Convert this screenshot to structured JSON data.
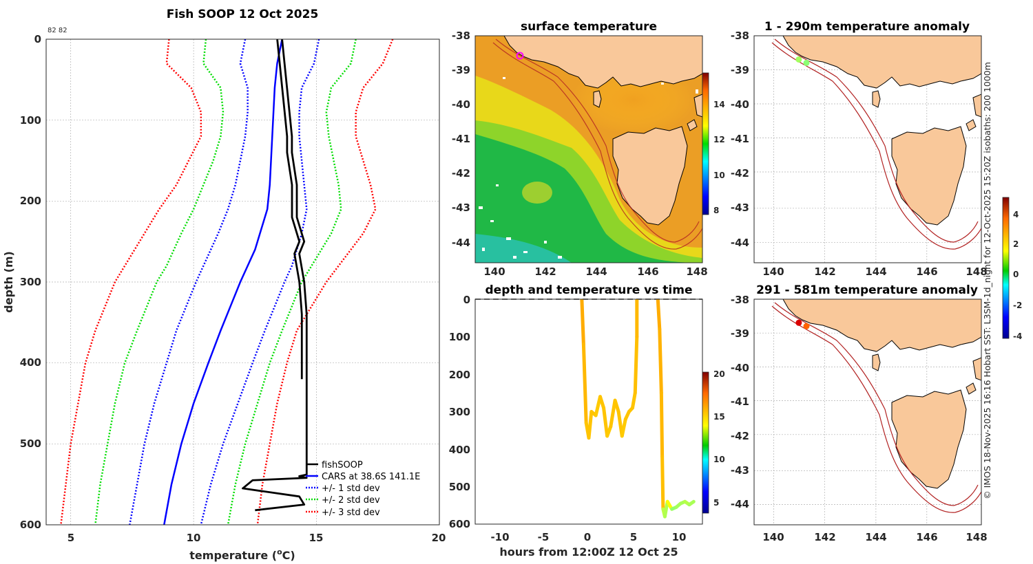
{
  "chart_data": [
    {
      "type": "line",
      "title": "Fish SOOP 12 Oct 2025",
      "subtitle": "82 82",
      "xlabel": "temperature (°C)",
      "xlabel_main": "temperature (",
      "xlabel_unit": "C)",
      "xlabel_sup": "o",
      "ylabel": "depth (m)",
      "xlim": [
        4,
        20
      ],
      "ylim": [
        0,
        600
      ],
      "xticks": [
        "5",
        "10",
        "15",
        "20"
      ],
      "yticks": [
        "0",
        "100",
        "200",
        "300",
        "400",
        "500",
        "600"
      ],
      "legend": [
        "fishSOOP",
        "CARS at 38.6S 141.1E",
        "+/- 1 std dev",
        "+/- 2 std dev",
        "+/- 3 std dev"
      ],
      "depths": [
        0,
        30,
        60,
        90,
        120,
        150,
        180,
        210,
        240,
        260,
        280,
        300,
        330,
        360,
        400,
        450,
        500,
        550,
        600
      ],
      "series": [
        {
          "name": "CARS mean",
          "color": "#0000ff",
          "style": "solid",
          "values": [
            13.6,
            13.4,
            13.3,
            13.25,
            13.2,
            13.15,
            13.1,
            13.0,
            12.7,
            12.5,
            12.2,
            11.9,
            11.5,
            11.1,
            10.6,
            10.0,
            9.5,
            9.1,
            8.8
          ]
        },
        {
          "name": "-1 std",
          "color": "#0000ff",
          "style": "dotted",
          "values": [
            12.1,
            11.9,
            12.2,
            12.2,
            12.1,
            11.9,
            11.7,
            11.4,
            11.0,
            10.7,
            10.4,
            10.1,
            9.7,
            9.3,
            8.9,
            8.4,
            8.0,
            7.7,
            7.4
          ]
        },
        {
          "name": "+1 std",
          "color": "#0000ff",
          "style": "dotted",
          "values": [
            15.1,
            14.9,
            14.4,
            14.3,
            14.3,
            14.4,
            14.5,
            14.6,
            14.4,
            14.2,
            14.0,
            13.7,
            13.3,
            12.9,
            12.4,
            11.8,
            11.2,
            10.7,
            10.3
          ]
        },
        {
          "name": "-2 std",
          "color": "#00dd00",
          "style": "dotted",
          "values": [
            10.5,
            10.4,
            11.1,
            11.2,
            11.1,
            10.8,
            10.4,
            10.0,
            9.5,
            9.2,
            8.9,
            8.5,
            8.1,
            7.7,
            7.2,
            6.8,
            6.5,
            6.2,
            6.0
          ]
        },
        {
          "name": "+2 std",
          "color": "#00dd00",
          "style": "dotted",
          "values": [
            16.6,
            16.4,
            15.6,
            15.4,
            15.5,
            15.7,
            15.9,
            16.0,
            15.6,
            15.2,
            14.8,
            14.4,
            14.0,
            13.6,
            13.1,
            12.6,
            12.1,
            11.7,
            11.4
          ]
        },
        {
          "name": "-3 std",
          "color": "#ff0000",
          "style": "dotted",
          "values": [
            9.0,
            8.9,
            9.9,
            10.3,
            10.3,
            9.8,
            9.3,
            8.6,
            8.0,
            7.6,
            7.2,
            6.8,
            6.4,
            6.0,
            5.6,
            5.3,
            5.0,
            4.8,
            4.6
          ]
        },
        {
          "name": "+3 std",
          "color": "#ff0000",
          "style": "dotted",
          "values": [
            18.1,
            17.7,
            16.9,
            16.6,
            16.6,
            16.9,
            17.2,
            17.4,
            16.9,
            16.4,
            15.9,
            15.4,
            14.8,
            14.2,
            13.8,
            13.4,
            13.1,
            12.8,
            12.6
          ]
        }
      ],
      "profile": {
        "name": "fishSOOP",
        "color": "#000000",
        "temps": [
          13.6,
          13.7,
          13.8,
          13.9,
          14.0,
          14.0,
          14.2,
          14.2,
          14.5,
          14.3,
          14.5,
          14.6,
          14.6,
          14.6,
          14.6,
          14.6,
          14.6,
          14.3,
          14.6,
          12.4,
          12.0,
          14.3,
          14.5,
          12.5
        ],
        "depths": [
          0,
          30,
          60,
          90,
          120,
          140,
          180,
          220,
          250,
          265,
          300,
          340,
          370,
          420,
          480,
          520,
          538,
          540,
          542,
          545,
          555,
          565,
          575,
          582
        ]
      }
    },
    {
      "type": "heatmap",
      "title": "surface temperature",
      "xticks": [
        "140",
        "142",
        "144",
        "146",
        "148"
      ],
      "yticks": [
        "-38",
        "-39",
        "-40",
        "-41",
        "-42",
        "-43",
        "-44"
      ],
      "xlim": [
        139.3,
        148.2
      ],
      "ylim": [
        -44.6,
        -37.9
      ],
      "colorbar": {
        "ticks": [
          "8",
          "10",
          "12",
          "14"
        ],
        "range": [
          7.5,
          16.5
        ]
      },
      "marker": {
        "lon": 141.1,
        "lat": -38.6
      }
    },
    {
      "type": "scatter",
      "title": "depth and temperature vs time",
      "xlabel": "hours from 12:00Z 12 Oct 25",
      "xticks": [
        "-10",
        "-5",
        "0",
        "5",
        "10"
      ],
      "yticks": [
        "0",
        "100",
        "200",
        "300",
        "400",
        "500",
        "600"
      ],
      "xlim": [
        -13,
        13
      ],
      "ylim": [
        0,
        600
      ],
      "colorbar": {
        "ticks": [
          "5",
          "10",
          "15",
          "20"
        ],
        "range": [
          3,
          20
        ]
      },
      "track": {
        "hours": [
          -0.8,
          -0.6,
          -0.3,
          0.0,
          0.3,
          0.8,
          1.3,
          1.7,
          2.1,
          2.5,
          3.0,
          3.4,
          3.8,
          4.2,
          4.6,
          5.0,
          5.3,
          5.5,
          5.5
        ],
        "depths": [
          0,
          120,
          330,
          370,
          300,
          310,
          260,
          290,
          365,
          340,
          270,
          300,
          365,
          320,
          300,
          290,
          250,
          100,
          0
        ],
        "temps": [
          15,
          14.8,
          14.6,
          14.6,
          14.6,
          14.5,
          14.6,
          14.6,
          14.5,
          14.6,
          14.6,
          14.6,
          14.5,
          14.6,
          14.6,
          14.6,
          14.7,
          14.8,
          15
        ]
      },
      "track2": {
        "hours": [
          7.9,
          8.1,
          8.3,
          8.4,
          8.5,
          8.7,
          9.0,
          9.5,
          10.0,
          10.5,
          11.0,
          11.5,
          12.0
        ],
        "depths": [
          0,
          80,
          250,
          420,
          560,
          580,
          540,
          560,
          555,
          545,
          540,
          548,
          540
        ],
        "temps": [
          15,
          14.9,
          14.8,
          14.7,
          12.5,
          12.3,
          13.5,
          11.8,
          12.1,
          12.2,
          12.4,
          12.2,
          12.3
        ]
      }
    },
    {
      "type": "scatter",
      "title": "1 - 290m temperature anomaly",
      "xticks": [
        "140",
        "142",
        "144",
        "146",
        "148"
      ],
      "yticks": [
        "-38",
        "-39",
        "-40",
        "-41",
        "-42",
        "-43",
        "-44"
      ],
      "points": [
        {
          "lon": 141.05,
          "lat": -38.6,
          "anomaly": 0.8
        },
        {
          "lon": 141.35,
          "lat": -38.7,
          "anomaly": 0.6
        }
      ]
    },
    {
      "type": "scatter",
      "title": "291 - 581m temperature anomaly",
      "xticks": [
        "140",
        "142",
        "144",
        "146",
        "148"
      ],
      "yticks": [
        "-38",
        "-39",
        "-40",
        "-41",
        "-42",
        "-43",
        "-44"
      ],
      "points": [
        {
          "lon": 141.05,
          "lat": -38.6,
          "anomaly": 4.2
        },
        {
          "lon": 141.35,
          "lat": -38.7,
          "anomaly": 3.0
        }
      ],
      "colorbar": {
        "ticks": [
          "4",
          "2",
          "0",
          "-2",
          "-4"
        ],
        "range": [
          -4,
          5
        ]
      }
    }
  ],
  "side_note": "© IMOS 18-Nov-2025 16:16 Hobart SST: L3SM-1d_night for 12-Oct-2025 15:20Z isobaths: 200  1000m"
}
